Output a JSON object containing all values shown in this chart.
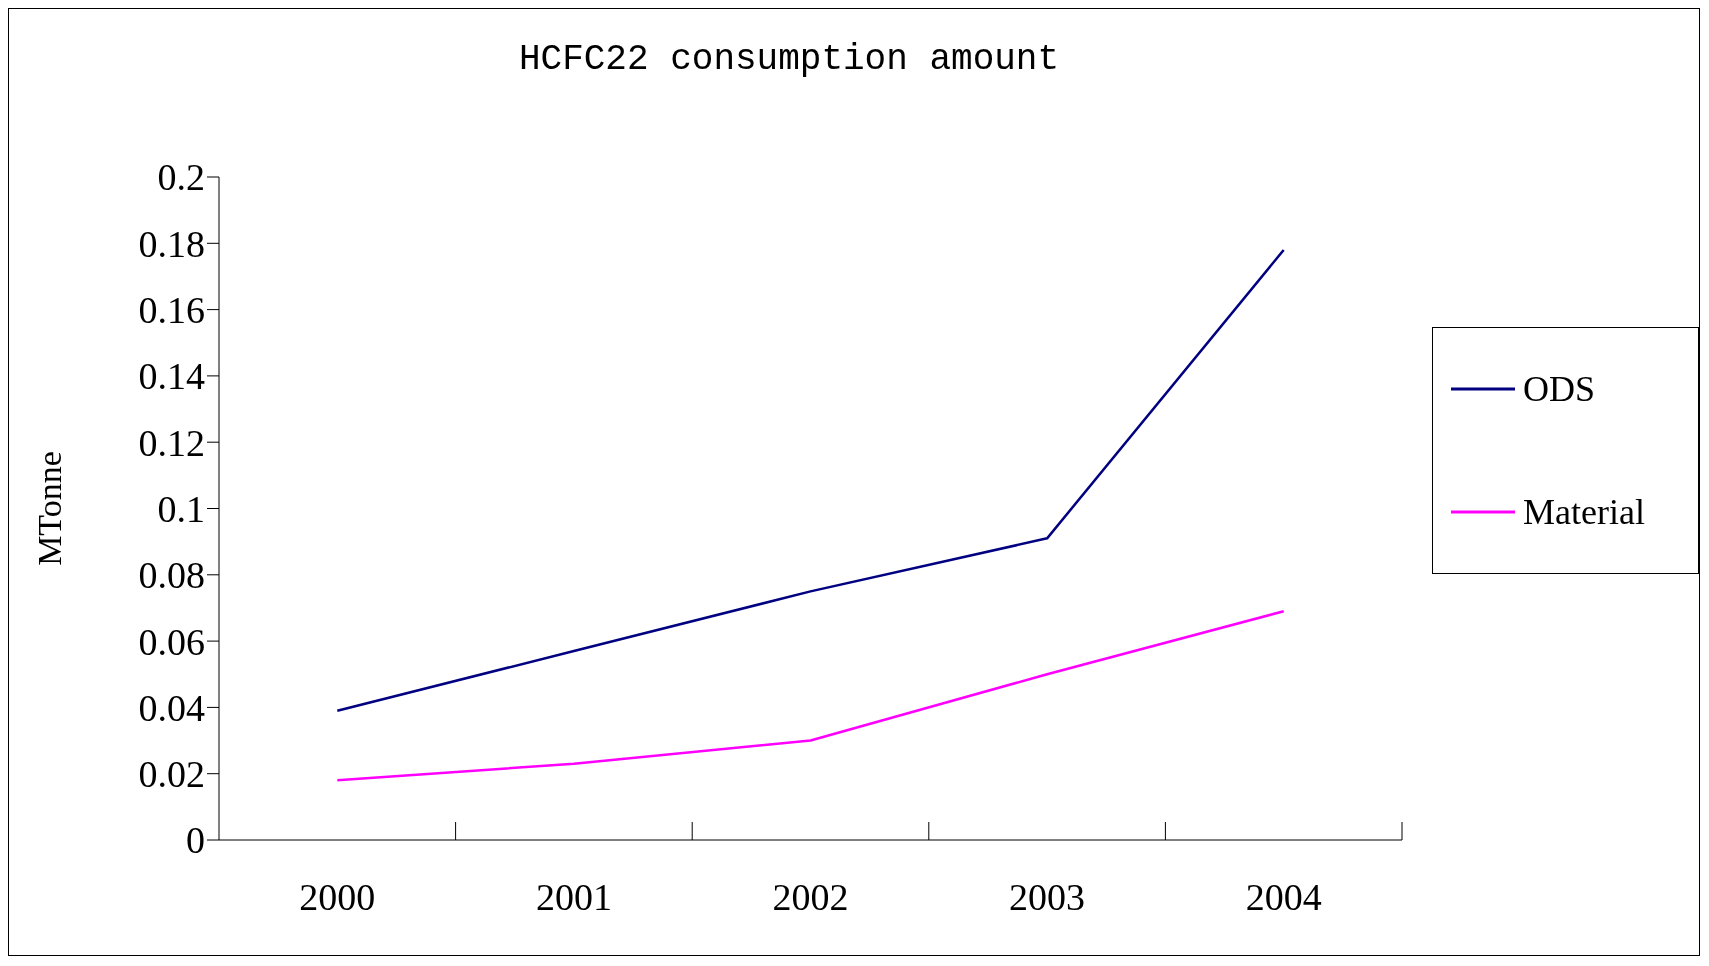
{
  "chart_data": {
    "type": "line",
    "title": "HCFC22 consumption amount",
    "ylabel": "MTonne",
    "categories": [
      "2000",
      "2001",
      "2002",
      "2003",
      "2004"
    ],
    "series": [
      {
        "name": "ODS",
        "color": "#000080",
        "values": [
          0.039,
          0.057,
          0.075,
          0.091,
          0.178
        ]
      },
      {
        "name": "Material",
        "color": "#ff00ff",
        "values": [
          0.018,
          0.023,
          0.03,
          0.05,
          0.069
        ]
      }
    ],
    "ylim": [
      0,
      0.2
    ],
    "yticks": [
      0,
      0.02,
      0.04,
      0.06,
      0.08,
      0.1,
      0.12,
      0.14,
      0.16,
      0.18,
      0.2
    ],
    "grid": false,
    "legend": "right",
    "marker": "none",
    "line_style": "solid"
  }
}
